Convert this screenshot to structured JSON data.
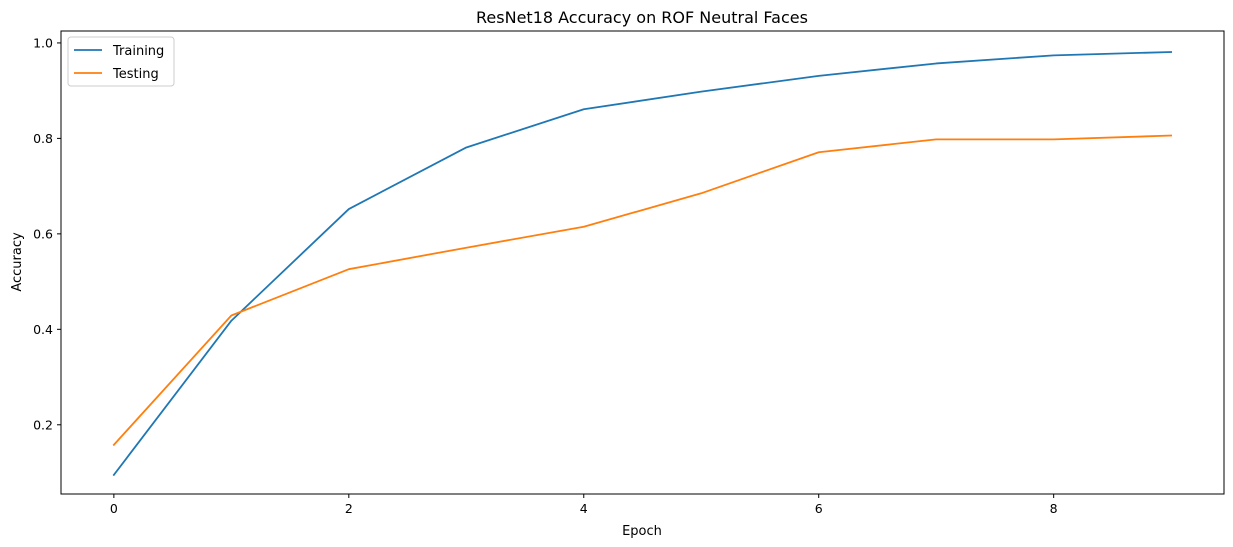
{
  "chart_data": {
    "type": "line",
    "title": "ResNet18 Accuracy on ROF Neutral Faces",
    "xlabel": "Epoch",
    "ylabel": "Accuracy",
    "x": [
      0,
      1,
      2,
      3,
      4,
      5,
      6,
      7,
      8,
      9
    ],
    "xlim": [
      -0.45,
      9.45
    ],
    "ylim": [
      0.055,
      1.025
    ],
    "xticks": [
      0,
      2,
      4,
      6,
      8
    ],
    "xtick_labels": [
      "0",
      "2",
      "4",
      "6",
      "8"
    ],
    "yticks": [
      0.2,
      0.4,
      0.6,
      0.8,
      1.0
    ],
    "ytick_labels": [
      "0.2",
      "0.4",
      "0.6",
      "0.8",
      "1.0"
    ],
    "grid": false,
    "legend_position": "top-left",
    "series": [
      {
        "name": "Training",
        "color": "#1f77b4",
        "values": [
          0.095,
          0.418,
          0.652,
          0.781,
          0.861,
          0.898,
          0.931,
          0.957,
          0.974,
          0.981
        ]
      },
      {
        "name": "Testing",
        "color": "#ff7f0e",
        "values": [
          0.158,
          0.429,
          0.526,
          0.571,
          0.615,
          0.685,
          0.771,
          0.798,
          0.798,
          0.806
        ]
      }
    ]
  }
}
